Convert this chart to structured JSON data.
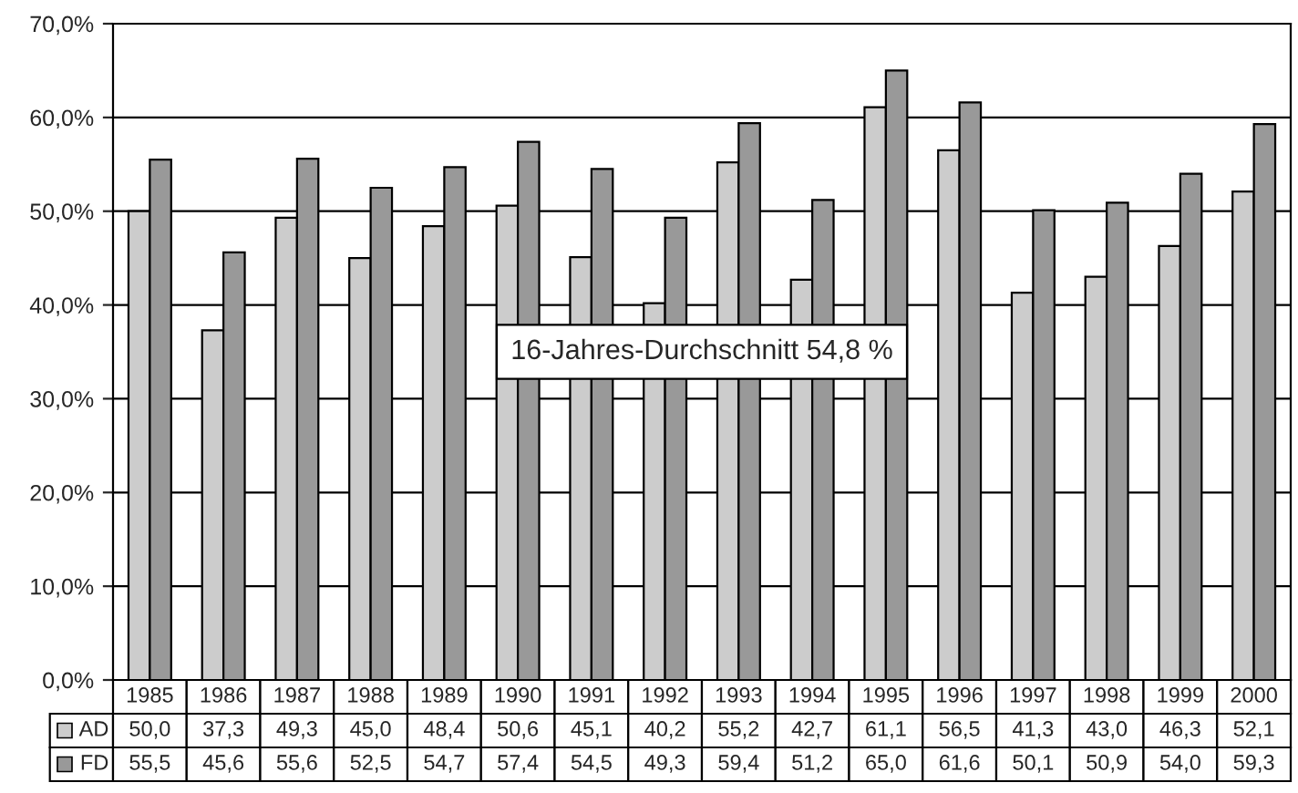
{
  "chart_data": {
    "type": "bar",
    "categories": [
      "1985",
      "1986",
      "1987",
      "1988",
      "1989",
      "1990",
      "1991",
      "1992",
      "1993",
      "1994",
      "1995",
      "1996",
      "1997",
      "1998",
      "1999",
      "2000"
    ],
    "series": [
      {
        "name": "AD",
        "color": "#cccccc",
        "values": [
          50.0,
          37.3,
          49.3,
          45.0,
          48.4,
          50.6,
          45.1,
          40.2,
          55.2,
          42.7,
          61.1,
          56.5,
          41.3,
          43.0,
          46.3,
          52.1
        ],
        "value_labels": [
          "50,0",
          "37,3",
          "49,3",
          "45,0",
          "48,4",
          "50,6",
          "45,1",
          "40,2",
          "55,2",
          "42,7",
          "61,1",
          "56,5",
          "41,3",
          "43,0",
          "46,3",
          "52,1"
        ]
      },
      {
        "name": "FD",
        "color": "#999999",
        "values": [
          55.5,
          45.6,
          55.6,
          52.5,
          54.7,
          57.4,
          54.5,
          49.3,
          59.4,
          51.2,
          65.0,
          61.6,
          50.1,
          50.9,
          54.0,
          59.3
        ],
        "value_labels": [
          "55,5",
          "45,6",
          "55,6",
          "52,5",
          "54,7",
          "57,4",
          "54,5",
          "49,3",
          "59,4",
          "51,2",
          "65,0",
          "61,6",
          "50,1",
          "50,9",
          "54,0",
          "59,3"
        ]
      }
    ],
    "ylim": [
      0,
      70
    ],
    "yticks": [
      {
        "value": 0,
        "label": "0,0%"
      },
      {
        "value": 10,
        "label": "10,0%"
      },
      {
        "value": 20,
        "label": "20,0%"
      },
      {
        "value": 30,
        "label": "30,0%"
      },
      {
        "value": 40,
        "label": "40,0%"
      },
      {
        "value": 50,
        "label": "50,0%"
      },
      {
        "value": 60,
        "label": "60,0%"
      },
      {
        "value": 70,
        "label": "70,0%"
      }
    ],
    "grid": "y",
    "legend": "bottom left",
    "annotations": [
      "16-Jahres-Durchschnitt 54,8 %"
    ]
  }
}
